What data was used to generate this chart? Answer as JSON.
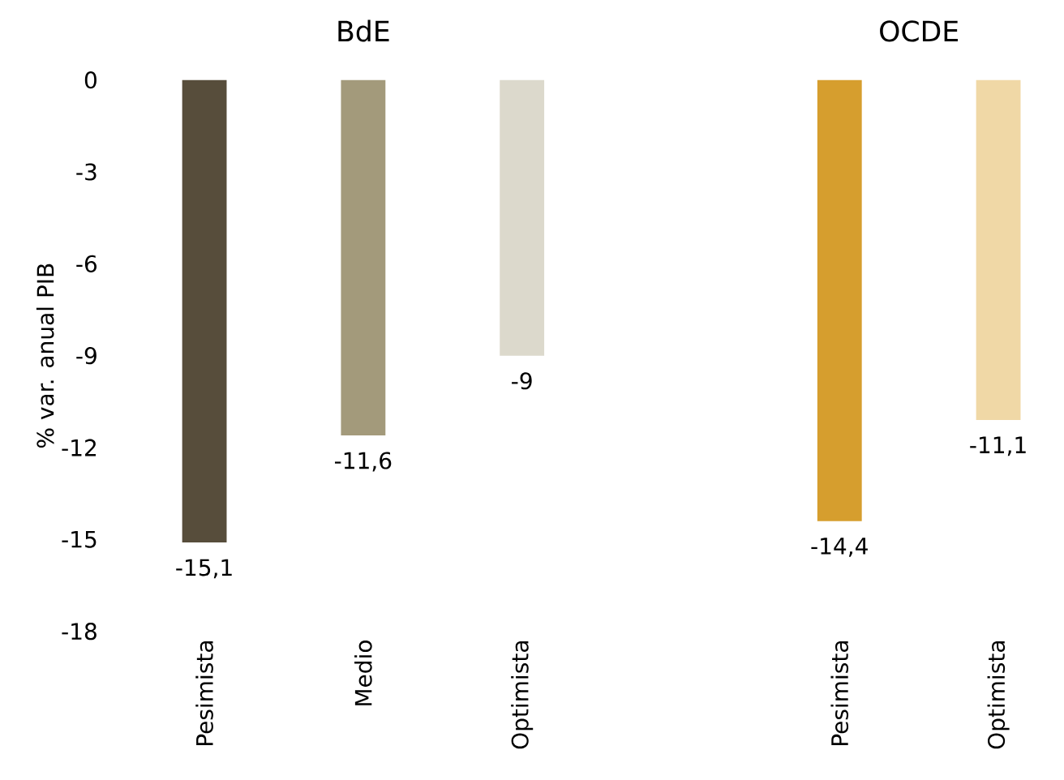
{
  "chart_data": {
    "type": "bar",
    "ylabel": "% var. anual PIB",
    "categories": [
      "Pesimista",
      "Medio",
      "Optimista",
      null,
      "Pesimista",
      "Optimista"
    ],
    "values": [
      -15.1,
      -11.6,
      -9,
      null,
      -14.4,
      -11.1
    ],
    "colors": [
      "#574d3b",
      "#a39a7b",
      "#dcd9cc",
      "#ffffff",
      "#d69e2e",
      "#f0d8a6"
    ],
    "value_labels": [
      "-15,1",
      "-11,6",
      "-9",
      null,
      "-14,4",
      "-11,1"
    ],
    "annotations": [
      "BdE",
      "OCDE"
    ],
    "ylim": [
      -18,
      0
    ],
    "yticks": [
      0,
      -3,
      -6,
      -9,
      -12,
      -15,
      -18
    ]
  }
}
